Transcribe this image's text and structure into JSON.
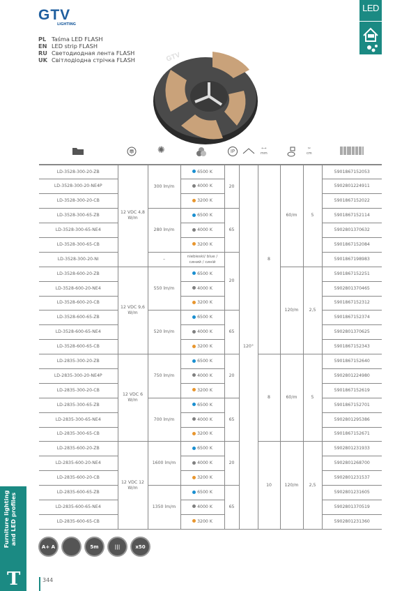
{
  "brand": {
    "name": "GTV",
    "sub": "LIGHTING"
  },
  "badge": {
    "label": "LED"
  },
  "product_names": [
    {
      "lang": "PL",
      "name": "Taśma LED FLASH"
    },
    {
      "lang": "EN",
      "name": "LED strip FLASH"
    },
    {
      "lang": "RU",
      "name": "Светодиодная лента FLASH"
    },
    {
      "lang": "UK",
      "name": "Світлодіодна стрічка FLASH"
    }
  ],
  "header_icons": [
    "folder-icon",
    "power-bulb-icon",
    "luminous-flux-icon",
    "color-temperature-icon",
    "ip-rating-icon",
    "beam-angle-icon",
    "width-mm-icon",
    "leds-per-meter-icon",
    "cut-length-cm-icon",
    "barcode-icon"
  ],
  "header_units": {
    "ip": "IP",
    "mm": "mm",
    "cm": "cm"
  },
  "colors": {
    "accent": "#1b8a83",
    "blue": "#1a8fd0",
    "grey": "#808080",
    "orange": "#e8962e"
  },
  "table": {
    "rows": [
      {
        "code": "LD-3528-300-20-ZB",
        "color": "6500 K",
        "dot": "blue",
        "ean": "5901867152053"
      },
      {
        "code": "LD-3528-300-20-NE4P",
        "color": "4000 K",
        "dot": "grey",
        "ean": "5902801224911"
      },
      {
        "code": "LD-3528-300-20-CB",
        "color": "3200 K",
        "dot": "orange",
        "ean": "5901867152022"
      },
      {
        "code": "LD-3528-300-65-ZB",
        "color": "6500 K",
        "dot": "blue",
        "ean": "5901867152114"
      },
      {
        "code": "LD-3528-300-65-NE4",
        "color": "4000 K",
        "dot": "grey",
        "ean": "5902801370632"
      },
      {
        "code": "LD-3528-300-65-CB",
        "color": "3200 K",
        "dot": "orange",
        "ean": "5901867152084"
      },
      {
        "code": "LD-3528-300-20-NI",
        "color": "niebieski/ blue / синий / синій",
        "dot": "",
        "ean": "5901867198983"
      },
      {
        "code": "LD-3528-600-20-ZB",
        "color": "6500 K",
        "dot": "blue",
        "ean": "5901867152251"
      },
      {
        "code": "LD-3528-600-20-NE4",
        "color": "4000 K",
        "dot": "grey",
        "ean": "5902801370465"
      },
      {
        "code": "LD-3528-600-20-CB",
        "color": "3200 K",
        "dot": "orange",
        "ean": "5901867152312"
      },
      {
        "code": "LD-3528-600-65-ZB",
        "color": "6500 K",
        "dot": "blue",
        "ean": "5901867152374"
      },
      {
        "code": "LD-3528-600-65-NE4",
        "color": "4000 K",
        "dot": "grey",
        "ean": "5902801370625"
      },
      {
        "code": "LD-3528-600-65-CB",
        "color": "3200 K",
        "dot": "orange",
        "ean": "5901867152343"
      },
      {
        "code": "LD-2835-300-20-ZB",
        "color": "6500 K",
        "dot": "blue",
        "ean": "5901867152640"
      },
      {
        "code": "LD-2835-300-20-NE4P",
        "color": "4000 K",
        "dot": "grey",
        "ean": "5902801224980"
      },
      {
        "code": "LD-2835-300-20-CB",
        "color": "3200 K",
        "dot": "orange",
        "ean": "5901867152619"
      },
      {
        "code": "LD-2835-300-65-ZB",
        "color": "6500 K",
        "dot": "blue",
        "ean": "5901867152701"
      },
      {
        "code": "LD-2835-300-65-NE4",
        "color": "4000 K",
        "dot": "grey",
        "ean": "5902801295386"
      },
      {
        "code": "LD-2835-300-65-CB",
        "color": "3200 K",
        "dot": "orange",
        "ean": "5901867152671"
      },
      {
        "code": "LD-2835-600-20-ZB",
        "color": "6500 K",
        "dot": "blue",
        "ean": "5902801231933"
      },
      {
        "code": "LD-2835-600-20-NE4",
        "color": "4000 K",
        "dot": "grey",
        "ean": "5902801268700"
      },
      {
        "code": "LD-2835-600-20-CB",
        "color": "3200 K",
        "dot": "orange",
        "ean": "5902801231537"
      },
      {
        "code": "LD-2835-600-65-ZB",
        "color": "6500 K",
        "dot": "blue",
        "ean": "5902801231605"
      },
      {
        "code": "LD-2835-600-65-NE4",
        "color": "4000 K",
        "dot": "grey",
        "ean": "5902801370519"
      },
      {
        "code": "LD-2835-600-65-CB",
        "color": "3200 K",
        "dot": "orange",
        "ean": "5902801231360"
      }
    ],
    "voltage": [
      {
        "span": 7,
        "text": "12 VDC 4,8 W/m"
      },
      {
        "span": 6,
        "text": "12 VDC 9,6 W/m"
      },
      {
        "span": 6,
        "text": "12 VDC 6 W/m"
      },
      {
        "span": 6,
        "text": "12 VDC 12 W/m"
      }
    ],
    "lumen": [
      {
        "span": 3,
        "text": "300 lm/m"
      },
      {
        "span": 3,
        "text": "280 lm/m"
      },
      {
        "span": 1,
        "text": "–"
      },
      {
        "span": 3,
        "text": "550 lm/m"
      },
      {
        "span": 3,
        "text": "520 lm/m"
      },
      {
        "span": 3,
        "text": "750 lm/m"
      },
      {
        "span": 3,
        "text": "700 lm/m"
      },
      {
        "span": 3,
        "text": "1600 lm/m"
      },
      {
        "span": 3,
        "text": "1350 lm/m"
      }
    ],
    "ip": [
      {
        "span": 3,
        "text": "20"
      },
      {
        "span": 3,
        "text": "65"
      },
      {
        "span": 4,
        "text": "20"
      },
      {
        "span": 3,
        "text": "65"
      },
      {
        "span": 3,
        "text": "20"
      },
      {
        "span": 3,
        "text": "65"
      },
      {
        "span": 3,
        "text": "20"
      },
      {
        "span": 3,
        "text": "65"
      }
    ],
    "angle": [
      {
        "span": 25,
        "text": "120°"
      }
    ],
    "width_mm": [
      {
        "span": 13,
        "text": "8"
      },
      {
        "span": 6,
        "text": "8"
      },
      {
        "span": 6,
        "text": "10"
      }
    ],
    "leds_per_m": [
      {
        "span": 7,
        "text": "60/m"
      },
      {
        "span": 6,
        "text": "120/m"
      },
      {
        "span": 6,
        "text": "60/m"
      },
      {
        "span": 6,
        "text": "120/m"
      }
    ],
    "cut_cm": [
      {
        "span": 7,
        "text": "5"
      },
      {
        "span": 6,
        "text": "2,5"
      },
      {
        "span": 6,
        "text": "5"
      },
      {
        "span": 6,
        "text": "2,5"
      }
    ]
  },
  "feature_icons": [
    {
      "name": "energy-class-icon",
      "label": "A+ A"
    },
    {
      "name": "dimmable-icon",
      "label": ""
    },
    {
      "name": "length-5m-icon",
      "label": "5m"
    },
    {
      "name": "driver-icon",
      "label": "|||"
    },
    {
      "name": "package-quantity-icon",
      "label": "x50"
    }
  ],
  "sidebar": {
    "label": "Furniture lighting and LED profiles"
  },
  "page_number": "344"
}
